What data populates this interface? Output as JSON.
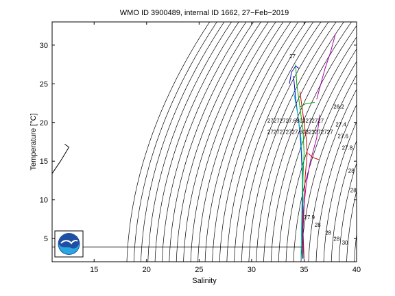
{
  "chart_data": {
    "type": "line",
    "title": "WMO ID 3900489, internal ID 1662, 27−Feb−2019",
    "xlabel": "Salinity",
    "ylabel": "Temperature [°C]",
    "xlim": [
      11,
      40
    ],
    "ylim": [
      2,
      33
    ],
    "xticks": [
      15,
      20,
      25,
      30,
      35,
      40
    ],
    "yticks": [
      5,
      10,
      15,
      20,
      25,
      30
    ],
    "grid": false,
    "legend": "none",
    "density_isopycnals": {
      "sigma_start": 14.0,
      "sigma_end": 40.0,
      "sigma_step": 0.5,
      "color": "#000000"
    },
    "isopycnal_labels": [
      {
        "text": "27",
        "x": 33.6,
        "y": 28.3
      },
      {
        "text": "27272727.6803272727",
        "x": 31.5,
        "y": 20.0
      },
      {
        "text": "2727272727.60323272727",
        "x": 31.5,
        "y": 18.5
      },
      {
        "text": "26.2",
        "x": 37.8,
        "y": 21.8
      },
      {
        "text": "27.4",
        "x": 38.0,
        "y": 19.5
      },
      {
        "text": "27.6",
        "x": 38.2,
        "y": 18.0
      },
      {
        "text": "27.8",
        "x": 38.6,
        "y": 16.5
      },
      {
        "text": "28",
        "x": 39.2,
        "y": 13.5
      },
      {
        "text": "28",
        "x": 39.4,
        "y": 11.0
      },
      {
        "text": "27.9",
        "x": 35.0,
        "y": 7.5
      },
      {
        "text": "28",
        "x": 36.0,
        "y": 6.5
      },
      {
        "text": "28",
        "x": 37.0,
        "y": 5.5
      },
      {
        "text": "28",
        "x": 37.8,
        "y": 4.7
      },
      {
        "text": "30",
        "x": 38.6,
        "y": 4.2
      }
    ],
    "series": [
      {
        "color": "#0000cc",
        "points": [
          [
            34.9,
            2.4
          ],
          [
            34.85,
            6
          ],
          [
            34.9,
            10
          ],
          [
            34.8,
            14
          ],
          [
            34.7,
            17
          ],
          [
            34.5,
            20
          ],
          [
            34.2,
            23
          ],
          [
            34.0,
            26
          ]
        ]
      },
      {
        "color": "#00aa00",
        "points": [
          [
            34.8,
            2.4
          ],
          [
            34.8,
            6
          ],
          [
            34.85,
            10
          ],
          [
            34.9,
            13
          ],
          [
            35.0,
            16
          ],
          [
            34.9,
            19
          ],
          [
            34.6,
            22
          ],
          [
            34.3,
            25
          ],
          [
            34.2,
            27.5
          ]
        ]
      },
      {
        "color": "#cc0000",
        "points": [
          [
            35.0,
            2.4
          ],
          [
            34.9,
            6
          ],
          [
            35.0,
            9
          ],
          [
            35.1,
            13
          ],
          [
            35.3,
            16
          ],
          [
            35.2,
            18
          ],
          [
            34.9,
            21
          ],
          [
            34.6,
            24
          ]
        ]
      },
      {
        "color": "#00bbbb",
        "points": [
          [
            34.7,
            2.4
          ],
          [
            34.75,
            6
          ],
          [
            34.8,
            10
          ],
          [
            34.85,
            14
          ],
          [
            34.7,
            18
          ],
          [
            34.4,
            21
          ],
          [
            34.0,
            24
          ]
        ]
      },
      {
        "color": "#aa00aa",
        "points": [
          [
            34.9,
            3
          ],
          [
            34.9,
            8
          ],
          [
            35.2,
            12
          ],
          [
            35.6,
            15
          ],
          [
            36.2,
            18
          ],
          [
            36.5,
            21
          ]
        ]
      },
      {
        "color": "#aa00aa",
        "points": [
          [
            36.2,
            23
          ],
          [
            36.6,
            25
          ],
          [
            37.0,
            27
          ],
          [
            37.5,
            29
          ],
          [
            38.0,
            31.5
          ]
        ]
      },
      {
        "color": "#0000cc",
        "points": [
          [
            34.5,
            27
          ],
          [
            34.2,
            27.3
          ],
          [
            33.8,
            26.5
          ],
          [
            33.6,
            25
          ]
        ]
      },
      {
        "color": "#cc0000",
        "points": [
          [
            35.4,
            16
          ],
          [
            35.8,
            15.5
          ],
          [
            36.4,
            15.2
          ]
        ]
      },
      {
        "color": "#00aa00",
        "points": [
          [
            34.6,
            22
          ],
          [
            35.1,
            22.4
          ],
          [
            36.0,
            22.6
          ]
        ]
      },
      {
        "color": "#000000",
        "points": [
          [
            11,
            3.9
          ],
          [
            25,
            3.9
          ],
          [
            34.8,
            3.9
          ]
        ]
      },
      {
        "color": "#000000",
        "points": [
          [
            11,
            13.4
          ],
          [
            11.8,
            15
          ],
          [
            12.6,
            16.8
          ],
          [
            12.2,
            17.2
          ]
        ]
      }
    ]
  }
}
